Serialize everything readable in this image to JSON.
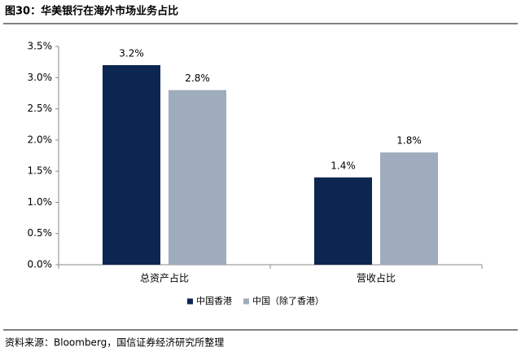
{
  "chart_data": {
    "type": "bar",
    "title": "图30：华美银行在海外市场业务占比",
    "source": "资料来源：Bloomberg，国信证券经济研究所整理",
    "categories": [
      "总资产占比",
      "营收占比"
    ],
    "series": [
      {
        "name": "中国香港",
        "color": "#0b2650",
        "values": [
          3.2,
          1.4
        ],
        "value_labels": [
          "3.2%",
          "1.4%"
        ]
      },
      {
        "name": "中国（除了香港）",
        "color": "#9eacbd",
        "values": [
          2.8,
          1.8
        ],
        "value_labels": [
          "2.8%",
          "1.8%"
        ]
      }
    ],
    "ylim": [
      0,
      3.5
    ],
    "yticks": [
      {
        "value": 0,
        "label": "0.0%"
      },
      {
        "value": 0.5,
        "label": "0.5%"
      },
      {
        "value": 1,
        "label": "1.0%"
      },
      {
        "value": 1.5,
        "label": "1.5%"
      },
      {
        "value": 2,
        "label": "2.0%"
      },
      {
        "value": 2.5,
        "label": "2.5%"
      },
      {
        "value": 3,
        "label": "3.0%"
      },
      {
        "value": 3.5,
        "label": "3.5%"
      }
    ],
    "legend": "bottom"
  }
}
